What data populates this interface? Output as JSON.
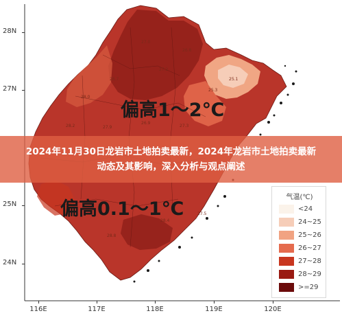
{
  "banner": {
    "line1": "2024年11月30日龙岩市土地拍卖最新，2024年龙岩市土地拍卖最新",
    "line2": "动态及其影响，深入分析与观点阐述"
  },
  "map": {
    "lat_labels": [
      "28N",
      "27N",
      "25N",
      "24N"
    ],
    "lon_labels": [
      "116E",
      "117E",
      "118E",
      "119E",
      "120E"
    ],
    "anomaly_north": "偏高1～2℃",
    "anomaly_south": "偏高0.1～1℃"
  },
  "legend": {
    "title": "气温(℃)",
    "items": [
      {
        "label": "<24",
        "color": "#fbf3ea"
      },
      {
        "label": "24~25",
        "color": "#f6cdb8"
      },
      {
        "label": "25~26",
        "color": "#f1a382"
      },
      {
        "label": "26~27",
        "color": "#e56b4e"
      },
      {
        "label": "27~28",
        "color": "#c8361f"
      },
      {
        "label": "28~29",
        "color": "#9a1a12"
      },
      {
        "label": ">=29",
        "color": "#6b0b0b"
      }
    ]
  },
  "stations": [
    "28.0",
    "26.7",
    "25.3",
    "25.1",
    "27.2",
    "26.8",
    "27.0",
    "28.2",
    "27.9",
    "26.9",
    "27.3",
    "28.8",
    "28.4",
    "27.5"
  ],
  "colors": {
    "land_main": "#b9352a",
    "land_dark": "#8f1f19",
    "land_mid": "#d55a3f",
    "land_light": "#f0a684",
    "banner": "#de5f42"
  }
}
